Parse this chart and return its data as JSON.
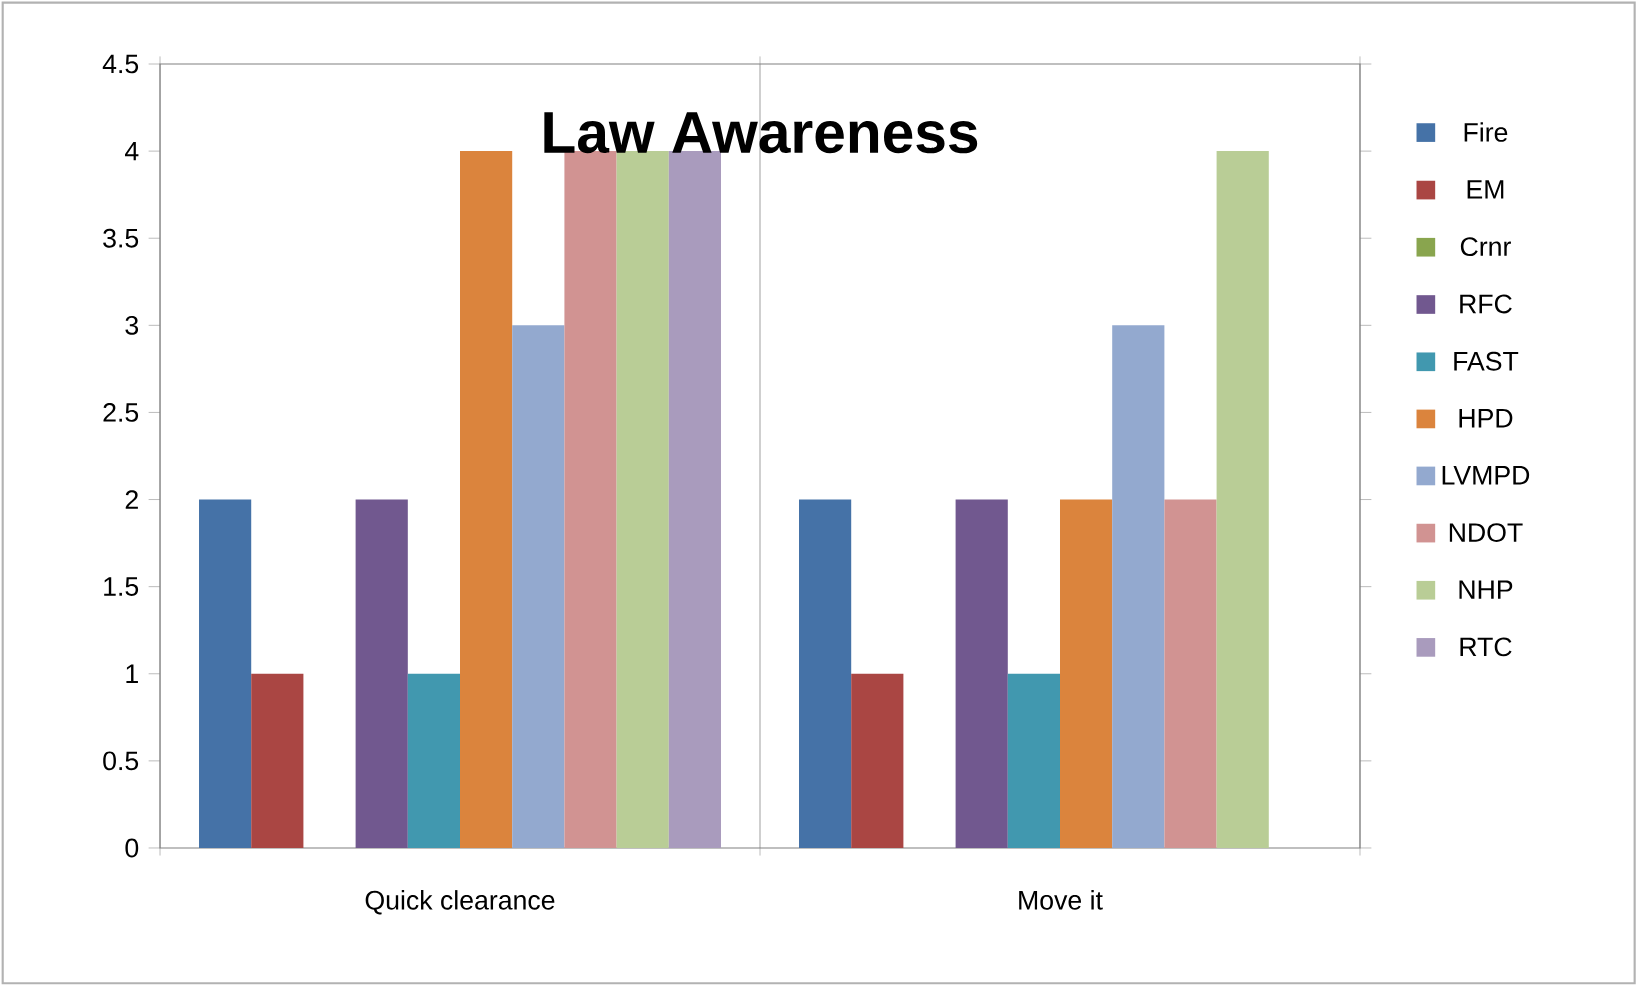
{
  "chart_data": {
    "type": "bar",
    "title": "Law Awareness",
    "categories": [
      "Quick clearance",
      "Move it"
    ],
    "series": [
      {
        "name": "Fire",
        "color": "#4572a7",
        "values": [
          2,
          2
        ]
      },
      {
        "name": "EM",
        "color": "#aa4643",
        "values": [
          1,
          1
        ]
      },
      {
        "name": "Crnr",
        "color": "#89a54e",
        "values": [
          0,
          0
        ]
      },
      {
        "name": "RFC",
        "color": "#71588f",
        "values": [
          2,
          2
        ]
      },
      {
        "name": "FAST",
        "color": "#4198af",
        "values": [
          1,
          1
        ]
      },
      {
        "name": "HPD",
        "color": "#db843d",
        "values": [
          4,
          2
        ]
      },
      {
        "name": "LVMPD",
        "color": "#93a9cf",
        "values": [
          3,
          3
        ]
      },
      {
        "name": "NDOT",
        "color": "#d19392",
        "values": [
          4,
          2
        ]
      },
      {
        "name": "NHP",
        "color": "#b9cd96",
        "values": [
          4,
          4
        ]
      },
      {
        "name": "RTC",
        "color": "#a99bbd",
        "values": [
          4,
          0
        ]
      }
    ],
    "ylim": [
      0,
      4.5
    ],
    "yticks": [
      0,
      0.5,
      1,
      1.5,
      2,
      2.5,
      3,
      3.5,
      4,
      4.5
    ],
    "grid": "x",
    "legend": "right"
  }
}
